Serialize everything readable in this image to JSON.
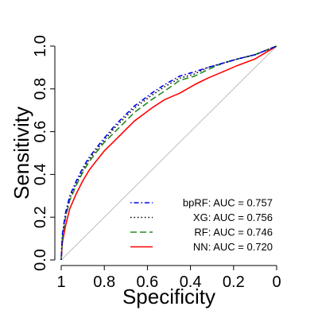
{
  "chart_data": {
    "type": "line",
    "title": "",
    "xlabel": "Specificity",
    "ylabel": "Sensitivity",
    "xlim": [
      1,
      0
    ],
    "ylim": [
      0,
      1
    ],
    "x_reversed": true,
    "grid": false,
    "legend_placement": "bottom-right",
    "xticks": [
      1,
      0.8,
      0.6,
      0.4,
      0.2,
      0
    ],
    "xtick_labels": [
      "1",
      "0.8",
      "0.6",
      "0.4",
      "0.2",
      "0"
    ],
    "yticks": [
      0,
      0.2,
      0.4,
      0.6,
      0.8,
      1
    ],
    "ytick_labels": [
      "0.0",
      "0.2",
      "0.4",
      "0.6",
      "0.8",
      "1.0"
    ],
    "reference_line": {
      "from": [
        1,
        0
      ],
      "to": [
        0,
        1
      ],
      "color": "#bebebe"
    },
    "series": [
      {
        "name": "bpRF",
        "legend_label": "bpRF: AUC = 0.757",
        "color": "#0000ee",
        "dash": "dotdash",
        "x": [
          1.0,
          0.995,
          0.98,
          0.96,
          0.93,
          0.9,
          0.87,
          0.84,
          0.8,
          0.75,
          0.7,
          0.66,
          0.62,
          0.58,
          0.52,
          0.45,
          0.38,
          0.32,
          0.25,
          0.18,
          0.1,
          0.05,
          0.0
        ],
        "y": [
          0.0,
          0.12,
          0.22,
          0.3,
          0.37,
          0.43,
          0.48,
          0.52,
          0.57,
          0.63,
          0.68,
          0.72,
          0.75,
          0.78,
          0.82,
          0.86,
          0.88,
          0.9,
          0.92,
          0.94,
          0.96,
          0.98,
          1.0
        ]
      },
      {
        "name": "XG",
        "legend_label": "XG: AUC = 0.756",
        "color": "#000000",
        "dash": "dotted",
        "x": [
          1.0,
          0.995,
          0.98,
          0.96,
          0.93,
          0.9,
          0.87,
          0.84,
          0.8,
          0.75,
          0.7,
          0.66,
          0.62,
          0.58,
          0.52,
          0.45,
          0.38,
          0.32,
          0.25,
          0.18,
          0.1,
          0.05,
          0.0
        ],
        "y": [
          0.0,
          0.11,
          0.21,
          0.29,
          0.36,
          0.42,
          0.47,
          0.51,
          0.56,
          0.62,
          0.67,
          0.71,
          0.74,
          0.77,
          0.81,
          0.85,
          0.87,
          0.9,
          0.92,
          0.94,
          0.96,
          0.98,
          1.0
        ]
      },
      {
        "name": "RF",
        "legend_label": "RF: AUC = 0.746",
        "color": "#228b22",
        "dash": "dashed",
        "x": [
          1.0,
          0.995,
          0.98,
          0.96,
          0.93,
          0.9,
          0.87,
          0.84,
          0.8,
          0.75,
          0.7,
          0.66,
          0.62,
          0.58,
          0.52,
          0.45,
          0.38,
          0.32,
          0.25,
          0.18,
          0.1,
          0.05,
          0.0
        ],
        "y": [
          0.0,
          0.1,
          0.2,
          0.28,
          0.35,
          0.41,
          0.46,
          0.5,
          0.55,
          0.6,
          0.65,
          0.69,
          0.72,
          0.75,
          0.79,
          0.84,
          0.86,
          0.89,
          0.92,
          0.94,
          0.96,
          0.98,
          1.0
        ]
      },
      {
        "name": "NN",
        "legend_label": "NN: AUC = 0.720",
        "color": "#ff0000",
        "dash": "solid",
        "x": [
          1.0,
          0.995,
          0.98,
          0.96,
          0.93,
          0.9,
          0.87,
          0.84,
          0.8,
          0.75,
          0.7,
          0.66,
          0.62,
          0.58,
          0.52,
          0.45,
          0.38,
          0.32,
          0.25,
          0.18,
          0.1,
          0.05,
          0.0
        ],
        "y": [
          0.0,
          0.08,
          0.16,
          0.24,
          0.31,
          0.37,
          0.42,
          0.46,
          0.51,
          0.56,
          0.61,
          0.65,
          0.68,
          0.71,
          0.75,
          0.78,
          0.82,
          0.85,
          0.88,
          0.91,
          0.94,
          0.97,
          1.0
        ]
      }
    ]
  }
}
